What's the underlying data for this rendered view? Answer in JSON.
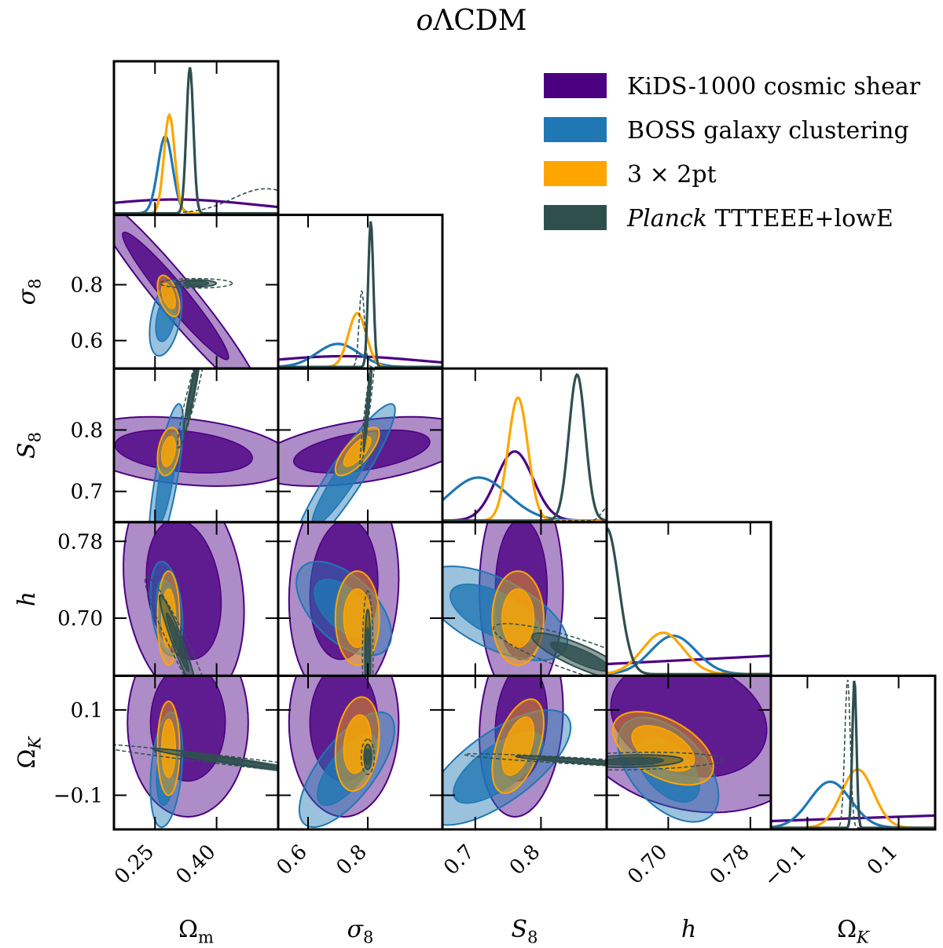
{
  "chart_data": {
    "type": "triangle",
    "title": "oΛCDM",
    "parameters": [
      {
        "key": "Om",
        "label": "Ωm",
        "range": [
          0.15,
          0.55
        ],
        "ticks": [
          0.25,
          0.4
        ],
        "ticklabels": [
          "0.25",
          "0.40"
        ]
      },
      {
        "key": "sigma8",
        "label": "σ8",
        "range": [
          0.5,
          1.05
        ],
        "ticks": [
          0.6,
          0.8
        ],
        "ticklabels": [
          "0.6",
          "0.8"
        ]
      },
      {
        "key": "S8",
        "label": "S8",
        "range": [
          0.65,
          0.9
        ],
        "ticks": [
          0.7,
          0.8
        ],
        "ticklabels": [
          "0.7",
          "0.8"
        ]
      },
      {
        "key": "h",
        "label": "h",
        "range": [
          0.64,
          0.8
        ],
        "ticks": [
          0.7,
          0.78
        ],
        "ticklabels": [
          "0.70",
          "0.78"
        ]
      },
      {
        "key": "OmK",
        "label": "ΩK",
        "range": [
          -0.18,
          0.18
        ],
        "ticks": [
          -0.1,
          0.1
        ],
        "ticklabels": [
          "−0.1",
          "0.1"
        ]
      }
    ],
    "legend": {
      "position": "top-right",
      "entries": [
        {
          "name": "KiDS-1000 cosmic shear",
          "color": "#4b0082"
        },
        {
          "name": "BOSS galaxy clustering",
          "color": "#1f77b4"
        },
        {
          "name": "3 × 2pt",
          "color": "#ffa500"
        },
        {
          "prefix": "Planck",
          "name": " TTTEEE+lowE",
          "color": "#2f4f4f"
        }
      ]
    },
    "series": [
      {
        "key": "kids",
        "name": "KiDS-1000 cosmic shear",
        "color": "#4b0082",
        "marginals": {
          "Om": {
            "type": "broad",
            "mean": 0.3,
            "sd": 0.2
          },
          "sigma8": {
            "type": "broad",
            "mean": 0.72,
            "sd": 0.25
          },
          "S8": {
            "mean": 0.76,
            "sd": 0.028
          },
          "h": {
            "type": "flat"
          },
          "OmK": {
            "type": "flat"
          }
        },
        "contours": [
          {
            "pair": [
              "Om",
              "sigma8"
            ],
            "center": [
              0.3,
              0.76
            ],
            "sd": [
              0.085,
              0.15
            ],
            "corr": -0.96
          },
          {
            "pair": [
              "Om",
              "S8"
            ],
            "center": [
              0.32,
              0.765
            ],
            "sd": [
              0.11,
              0.023
            ],
            "corr": -0.3
          },
          {
            "pair": [
              "sigma8",
              "S8"
            ],
            "center": [
              0.78,
              0.765
            ],
            "sd": [
              0.15,
              0.023
            ],
            "corr": 0.45
          },
          {
            "pair": [
              "Om",
              "h"
            ],
            "center": [
              0.32,
              0.73
            ],
            "sd": [
              0.06,
              0.048
            ],
            "corr": -0.2
          },
          {
            "pair": [
              "sigma8",
              "h"
            ],
            "center": [
              0.72,
              0.73
            ],
            "sd": [
              0.075,
              0.048
            ],
            "corr": 0.1
          },
          {
            "pair": [
              "S8",
              "h"
            ],
            "center": [
              0.77,
              0.73
            ],
            "sd": [
              0.026,
              0.048
            ],
            "corr": 0.0
          },
          {
            "pair": [
              "Om",
              "OmK"
            ],
            "center": [
              0.33,
              0.07
            ],
            "sd": [
              0.06,
              0.09
            ],
            "corr": 0.0
          },
          {
            "pair": [
              "sigma8",
              "OmK"
            ],
            "center": [
              0.72,
              0.07
            ],
            "sd": [
              0.075,
              0.09
            ],
            "corr": 0.0
          },
          {
            "pair": [
              "S8",
              "OmK"
            ],
            "center": [
              0.77,
              0.07
            ],
            "sd": [
              0.026,
              0.09
            ],
            "corr": 0.15
          },
          {
            "pair": [
              "h",
              "OmK"
            ],
            "center": [
              0.72,
              0.08
            ],
            "sd": [
              0.05,
              0.09
            ],
            "corr": -0.2
          }
        ]
      },
      {
        "key": "boss",
        "name": "BOSS galaxy clustering",
        "color": "#1f77b4",
        "marginals": {
          "Om": {
            "mean": 0.275,
            "sd": 0.018
          },
          "sigma8": {
            "mean": 0.7,
            "sd": 0.07
          },
          "S8": {
            "mean": 0.705,
            "sd": 0.045
          },
          "h": {
            "mean": 0.705,
            "sd": 0.022
          },
          "OmK": {
            "mean": -0.05,
            "sd": 0.045
          }
        },
        "contours": [
          {
            "pair": [
              "Om",
              "sigma8"
            ],
            "center": [
              0.276,
              0.68
            ],
            "sd": [
              0.016,
              0.055
            ],
            "corr": 0.4
          },
          {
            "pair": [
              "Om",
              "S8"
            ],
            "center": [
              0.277,
              0.72
            ],
            "sd": [
              0.017,
              0.05
            ],
            "corr": 0.75
          },
          {
            "pair": [
              "sigma8",
              "S8"
            ],
            "center": [
              0.72,
              0.72
            ],
            "sd": [
              0.07,
              0.05
            ],
            "corr": 0.92
          },
          {
            "pair": [
              "Om",
              "h"
            ],
            "center": [
              0.278,
              0.71
            ],
            "sd": [
              0.016,
              0.02
            ],
            "corr": -0.3
          },
          {
            "pair": [
              "sigma8",
              "h"
            ],
            "center": [
              0.72,
              0.71
            ],
            "sd": [
              0.065,
              0.02
            ],
            "corr": -0.55
          },
          {
            "pair": [
              "S8",
              "h"
            ],
            "center": [
              0.73,
              0.705
            ],
            "sd": [
              0.045,
              0.02
            ],
            "corr": -0.6
          },
          {
            "pair": [
              "Om",
              "OmK"
            ],
            "center": [
              0.278,
              -0.04
            ],
            "sd": [
              0.016,
              0.055
            ],
            "corr": 0.3
          },
          {
            "pair": [
              "sigma8",
              "OmK"
            ],
            "center": [
              0.73,
              -0.04
            ],
            "sd": [
              0.065,
              0.055
            ],
            "corr": 0.7
          },
          {
            "pair": [
              "S8",
              "OmK"
            ],
            "center": [
              0.735,
              -0.035
            ],
            "sd": [
              0.045,
              0.055
            ],
            "corr": 0.7
          },
          {
            "pair": [
              "h",
              "OmK"
            ],
            "center": [
              0.7,
              -0.04
            ],
            "sd": [
              0.02,
              0.05
            ],
            "corr": -0.5
          }
        ]
      },
      {
        "key": "x2pt",
        "name": "3 × 2pt",
        "color": "#ffa500",
        "marginals": {
          "Om": {
            "mean": 0.285,
            "sd": 0.013
          },
          "sigma8": {
            "mean": 0.765,
            "sd": 0.03
          },
          "S8": {
            "mean": 0.765,
            "sd": 0.015
          },
          "h": {
            "mean": 0.695,
            "sd": 0.02
          },
          "OmK": {
            "mean": 0.01,
            "sd": 0.035
          }
        },
        "contours": [
          {
            "pair": [
              "Om",
              "sigma8"
            ],
            "center": [
              0.283,
              0.76
            ],
            "sd": [
              0.011,
              0.03
            ],
            "corr": -0.5
          },
          {
            "pair": [
              "Om",
              "S8"
            ],
            "center": [
              0.283,
              0.765
            ],
            "sd": [
              0.011,
              0.016
            ],
            "corr": 0.3
          },
          {
            "pair": [
              "sigma8",
              "S8"
            ],
            "center": [
              0.765,
              0.765
            ],
            "sd": [
              0.03,
              0.016
            ],
            "corr": 0.75
          },
          {
            "pair": [
              "Om",
              "h"
            ],
            "center": [
              0.283,
              0.7
            ],
            "sd": [
              0.011,
              0.02
            ],
            "corr": 0.0
          },
          {
            "pair": [
              "sigma8",
              "h"
            ],
            "center": [
              0.765,
              0.7
            ],
            "sd": [
              0.03,
              0.02
            ],
            "corr": 0.0
          },
          {
            "pair": [
              "S8",
              "h"
            ],
            "center": [
              0.765,
              0.7
            ],
            "sd": [
              0.016,
              0.02
            ],
            "corr": 0.0
          },
          {
            "pair": [
              "Om",
              "OmK"
            ],
            "center": [
              0.283,
              0.01
            ],
            "sd": [
              0.011,
              0.045
            ],
            "corr": 0.0
          },
          {
            "pair": [
              "sigma8",
              "OmK"
            ],
            "center": [
              0.765,
              0.02
            ],
            "sd": [
              0.03,
              0.045
            ],
            "corr": 0.2
          },
          {
            "pair": [
              "S8",
              "OmK"
            ],
            "center": [
              0.765,
              0.015
            ],
            "sd": [
              0.016,
              0.045
            ],
            "corr": 0.5
          },
          {
            "pair": [
              "h",
              "OmK"
            ],
            "center": [
              0.695,
              0.01
            ],
            "sd": [
              0.02,
              0.035
            ],
            "corr": -0.5
          }
        ]
      },
      {
        "key": "planck",
        "name": "Planck TTTEEE+lowE",
        "color": "#2f4f4f",
        "marginals": {
          "Om": {
            "mean": 0.335,
            "sd": 0.0085
          },
          "sigma8": {
            "mean": 0.81,
            "sd": 0.0085
          },
          "S8": {
            "mean": 0.855,
            "sd": 0.0125
          },
          "h": {
            "type": "edge",
            "mean": 0.64,
            "sd": 0.012
          },
          "OmK": {
            "mean": 0.003,
            "sd": 0.0045
          }
        },
        "dashed_marginals": {
          "Om": {
            "mean": 0.52,
            "sd": 0.08
          },
          "sigma8": {
            "mean": 0.78,
            "sd": 0.009
          },
          "S8": {
            "mean": 0.9,
            "sd": 0.008
          },
          "OmK": {
            "mean": -0.012,
            "sd": 0.006
          }
        },
        "contours": [
          {
            "pair": [
              "Om",
              "sigma8"
            ],
            "center": [
              0.35,
              0.805
            ],
            "sd": [
              0.02,
              0.005
            ],
            "corr": 0.0
          },
          {
            "pair": [
              "Om",
              "S8"
            ],
            "center": [
              0.34,
              0.86
            ],
            "sd": [
              0.008,
              0.026
            ],
            "corr": 0.94
          },
          {
            "pair": [
              "sigma8",
              "S8"
            ],
            "center": [
              0.8,
              0.84
            ],
            "sd": [
              0.006,
              0.03
            ],
            "corr": 0.95
          },
          {
            "pair": [
              "Om",
              "h"
            ],
            "center": [
              0.305,
              0.675
            ],
            "sd": [
              0.018,
              0.02
            ],
            "corr": -0.95
          },
          {
            "pair": [
              "sigma8",
              "h"
            ],
            "center": [
              0.8,
              0.66
            ],
            "sd": [
              0.004,
              0.02
            ],
            "corr": 0.0
          },
          {
            "pair": [
              "S8",
              "h"
            ],
            "center": [
              0.86,
              0.66
            ],
            "sd": [
              0.03,
              0.01
            ],
            "corr": -0.85
          },
          {
            "pair": [
              "Om",
              "OmK"
            ],
            "center": [
              0.44,
              -0.02
            ],
            "sd": [
              0.08,
              0.012
            ],
            "corr": -0.97
          },
          {
            "pair": [
              "sigma8",
              "OmK"
            ],
            "center": [
              0.8,
              -0.01
            ],
            "sd": [
              0.005,
              0.012
            ],
            "corr": 0.0
          },
          {
            "pair": [
              "S8",
              "OmK"
            ],
            "center": [
              0.86,
              -0.02
            ],
            "sd": [
              0.04,
              0.005
            ],
            "corr": -0.9
          },
          {
            "pair": [
              "h",
              "OmK"
            ],
            "center": [
              0.665,
              -0.02
            ],
            "sd": [
              0.02,
              0.006
            ],
            "corr": 0.2
          }
        ]
      }
    ]
  }
}
